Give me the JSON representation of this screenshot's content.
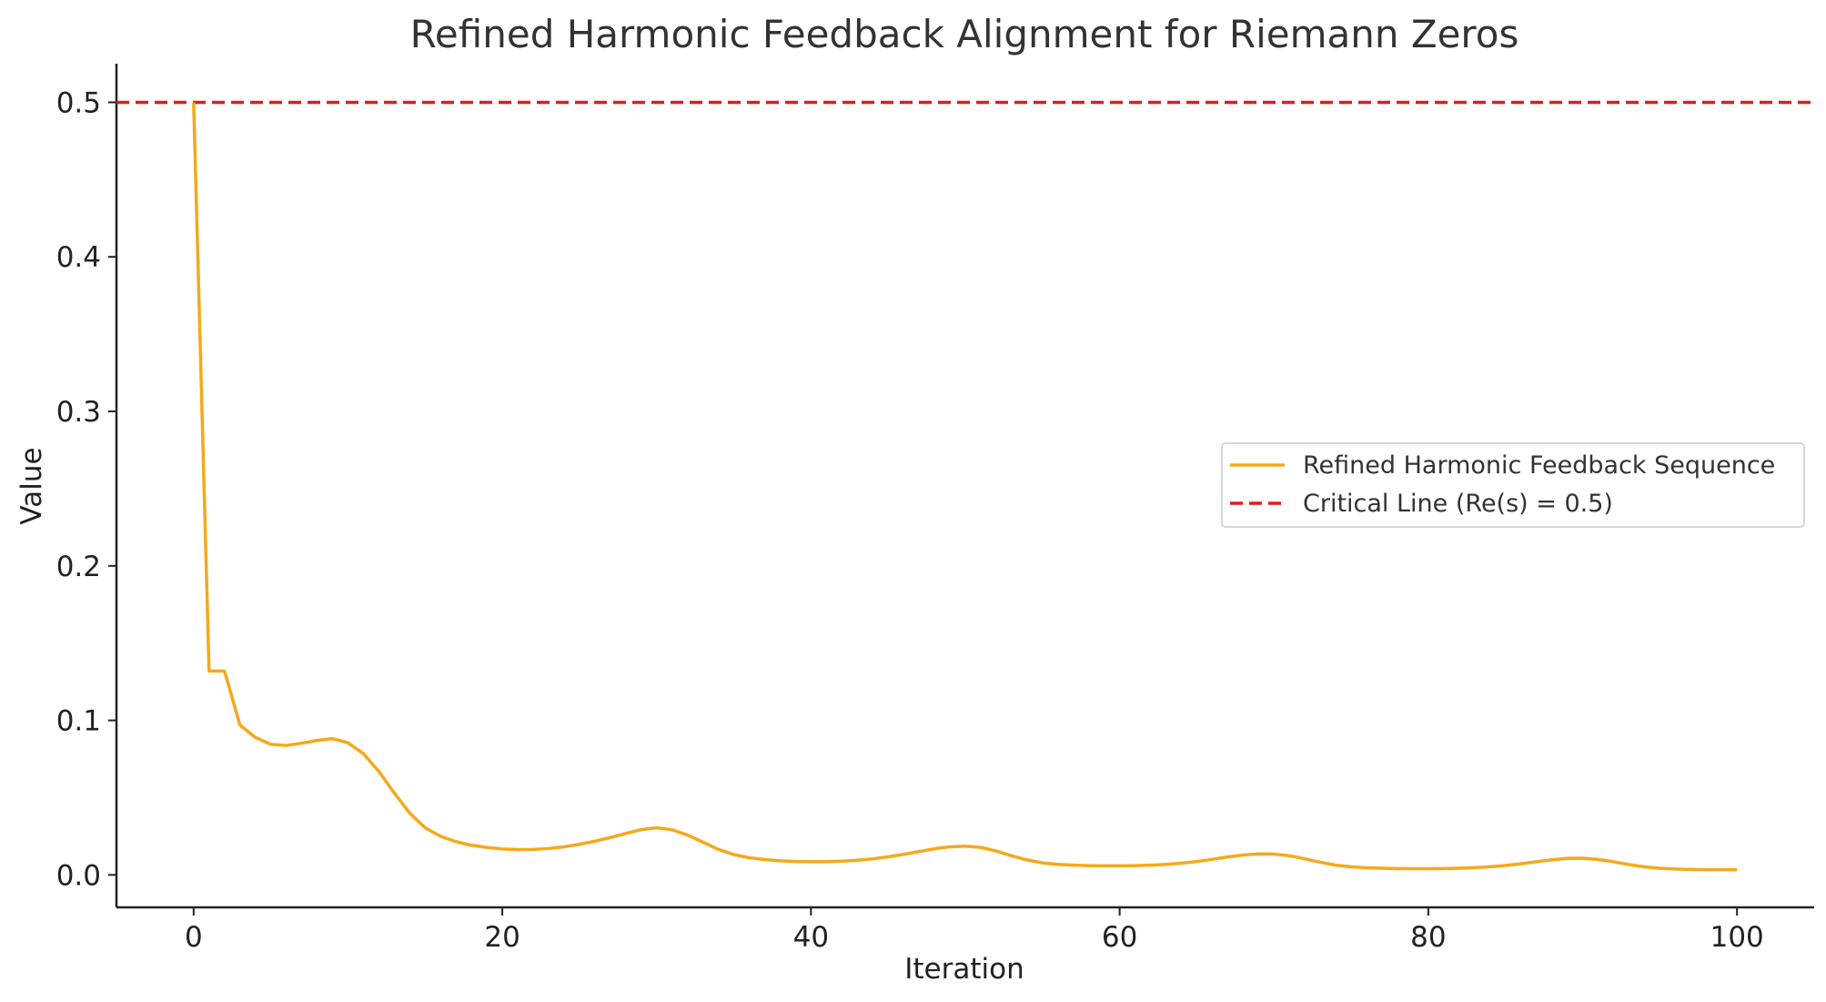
{
  "chart_data": {
    "type": "line",
    "title": "Refined Harmonic Feedback Alignment for Riemann Zeros",
    "xlabel": "Iteration",
    "ylabel": "Value",
    "xlim": [
      -5,
      105
    ],
    "ylim": [
      -0.021,
      0.525
    ],
    "xticks": [
      0,
      20,
      40,
      60,
      80,
      100
    ],
    "yticks": [
      0.0,
      0.1,
      0.2,
      0.3,
      0.4,
      0.5
    ],
    "xtick_labels": [
      "0",
      "20",
      "40",
      "60",
      "80",
      "100"
    ],
    "ytick_labels": [
      "0.0",
      "0.1",
      "0.2",
      "0.3",
      "0.4",
      "0.5"
    ],
    "grid": false,
    "legend_position": "center-right",
    "series": [
      {
        "name": "Refined Harmonic Feedback Sequence",
        "style": "solid",
        "color": "#f5a91b",
        "x": [
          0,
          1,
          2,
          3,
          4,
          5,
          6,
          7,
          8,
          9,
          10,
          11,
          12,
          13,
          14,
          15,
          16,
          17,
          18,
          19,
          20,
          21,
          22,
          23,
          24,
          25,
          26,
          27,
          28,
          29,
          30,
          31,
          32,
          33,
          34,
          35,
          36,
          37,
          38,
          39,
          40,
          41,
          42,
          43,
          44,
          45,
          46,
          47,
          48,
          49,
          50,
          51,
          52,
          53,
          54,
          55,
          56,
          57,
          58,
          59,
          60,
          61,
          62,
          63,
          64,
          65,
          66,
          67,
          68,
          69,
          70,
          71,
          72,
          73,
          74,
          75,
          76,
          77,
          78,
          79,
          80,
          81,
          82,
          83,
          84,
          85,
          86,
          87,
          88,
          89,
          90,
          91,
          92,
          93,
          94,
          95,
          96,
          97,
          98,
          99,
          100
        ],
        "y": [
          0.5,
          0.132,
          0.132,
          0.097,
          0.089,
          0.0845,
          0.0838,
          0.0852,
          0.087,
          0.0882,
          0.0855,
          0.0785,
          0.067,
          0.053,
          0.04,
          0.0305,
          0.025,
          0.0215,
          0.0192,
          0.0178,
          0.0168,
          0.0164,
          0.0165,
          0.0171,
          0.0182,
          0.0198,
          0.0218,
          0.0242,
          0.0268,
          0.0293,
          0.0305,
          0.0292,
          0.0258,
          0.0212,
          0.0165,
          0.0132,
          0.0111,
          0.0099,
          0.0091,
          0.0087,
          0.0085,
          0.0086,
          0.0089,
          0.0095,
          0.0104,
          0.0117,
          0.0133,
          0.0151,
          0.0169,
          0.0182,
          0.0186,
          0.0178,
          0.0155,
          0.0124,
          0.0097,
          0.0078,
          0.0068,
          0.0063,
          0.006,
          0.0059,
          0.0059,
          0.006,
          0.0063,
          0.0068,
          0.0076,
          0.0087,
          0.0101,
          0.0116,
          0.0129,
          0.0136,
          0.0135,
          0.0124,
          0.0104,
          0.0082,
          0.0063,
          0.0052,
          0.0046,
          0.0043,
          0.0041,
          0.004,
          0.004,
          0.0041,
          0.0043,
          0.0047,
          0.0053,
          0.0061,
          0.0072,
          0.0085,
          0.0098,
          0.0107,
          0.0108,
          0.01,
          0.0085,
          0.0067,
          0.0052,
          0.0043,
          0.0038,
          0.0035,
          0.0034,
          0.0034,
          0.0034
        ]
      },
      {
        "name": "Critical Line (Re(s) = 0.5)",
        "style": "dashed",
        "color": "#e31a1c",
        "y_constant": 0.5
      }
    ]
  }
}
